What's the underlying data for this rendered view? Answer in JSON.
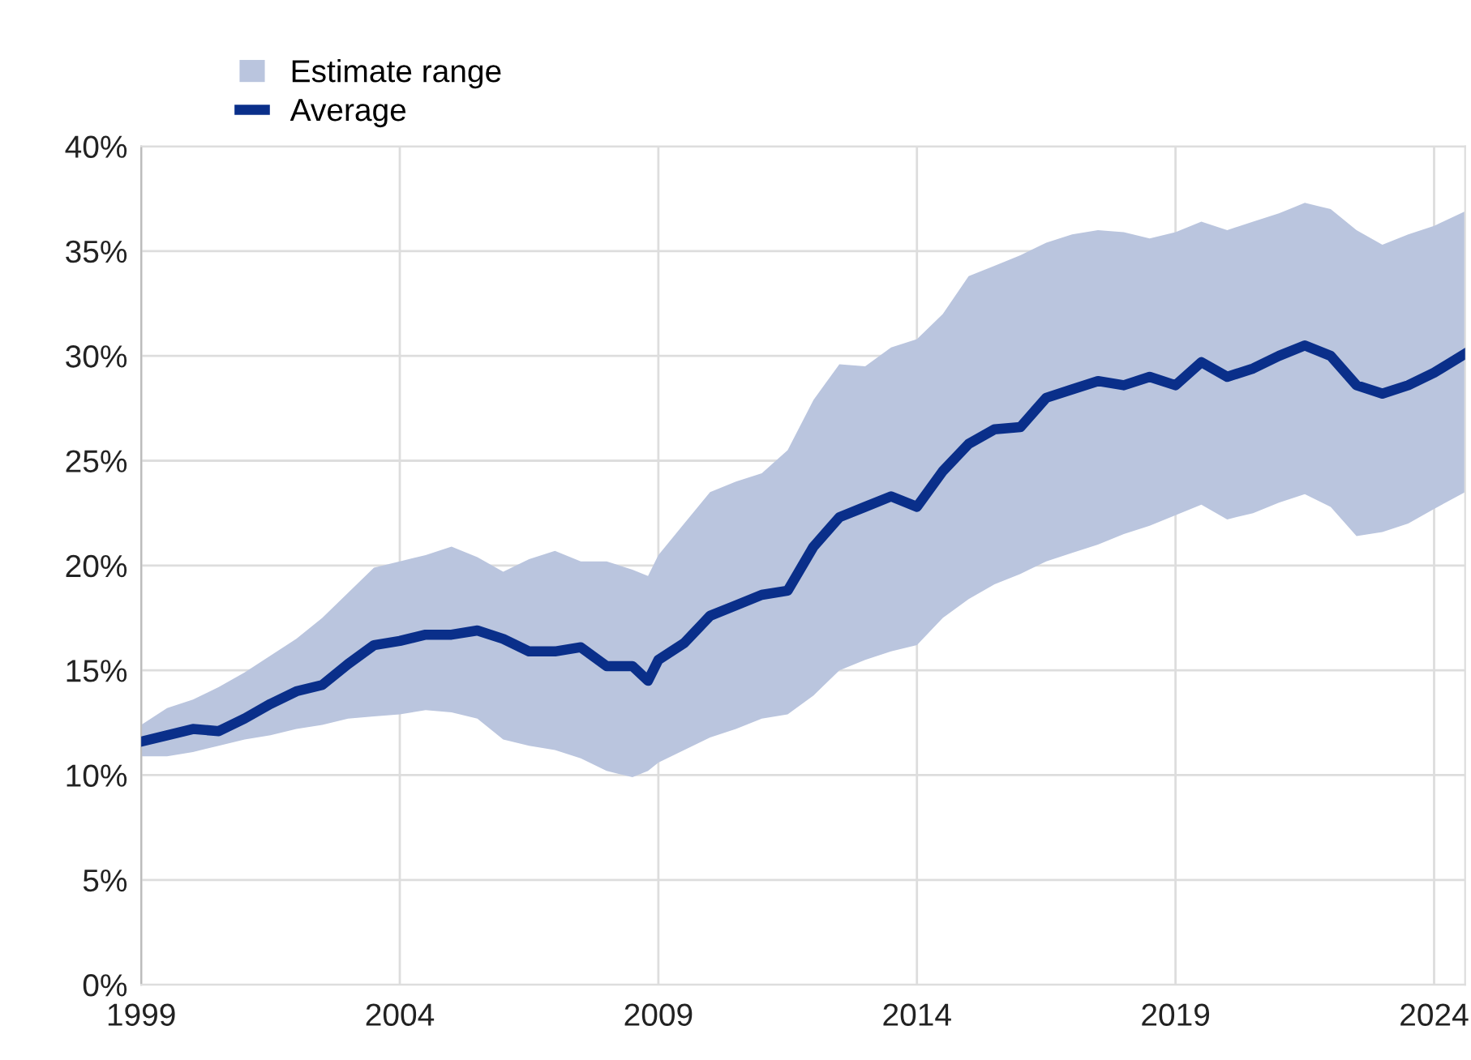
{
  "chart_data": {
    "type": "line",
    "x": [
      1999.0,
      1999.5,
      2000.0,
      2000.5,
      2001.0,
      2001.5,
      2002.0,
      2002.5,
      2003.0,
      2003.5,
      2004.0,
      2004.5,
      2005.0,
      2005.5,
      2006.0,
      2006.5,
      2007.0,
      2007.5,
      2008.0,
      2008.5,
      2008.8,
      2009.0,
      2009.5,
      2010.0,
      2010.5,
      2011.0,
      2011.5,
      2012.0,
      2012.5,
      2013.0,
      2013.5,
      2014.0,
      2014.5,
      2015.0,
      2015.5,
      2016.0,
      2016.5,
      2017.0,
      2017.5,
      2018.0,
      2018.5,
      2019.0,
      2019.5,
      2020.0,
      2020.5,
      2021.0,
      2021.5,
      2022.0,
      2022.5,
      2023.0,
      2023.5,
      2024.0,
      2024.6
    ],
    "series": [
      {
        "name": "Average",
        "color": "#0a2f8a",
        "values": [
          11.6,
          11.9,
          12.2,
          12.1,
          12.7,
          13.4,
          14.0,
          14.3,
          15.3,
          16.2,
          16.4,
          16.7,
          16.7,
          16.9,
          16.5,
          15.9,
          15.9,
          16.1,
          15.2,
          15.2,
          14.5,
          15.5,
          16.3,
          17.6,
          18.1,
          18.6,
          18.8,
          20.9,
          22.3,
          22.8,
          23.3,
          22.8,
          24.5,
          25.8,
          26.5,
          26.6,
          28.0,
          28.4,
          28.8,
          28.6,
          29.0,
          28.6,
          29.7,
          29.0,
          29.4,
          30.0,
          30.5,
          30.0,
          28.6,
          28.2,
          28.6,
          29.2,
          30.1
        ],
        "lower": [
          10.9,
          10.9,
          11.1,
          11.4,
          11.7,
          11.9,
          12.2,
          12.4,
          12.7,
          12.8,
          12.9,
          13.1,
          13.0,
          12.7,
          11.7,
          11.4,
          11.2,
          10.8,
          10.2,
          9.9,
          10.2,
          10.6,
          11.2,
          11.8,
          12.2,
          12.7,
          12.9,
          13.8,
          15.0,
          15.5,
          15.9,
          16.2,
          17.5,
          18.4,
          19.1,
          19.6,
          20.2,
          20.6,
          21.0,
          21.5,
          21.9,
          22.4,
          22.9,
          22.2,
          22.5,
          23.0,
          23.4,
          22.8,
          21.4,
          21.6,
          22.0,
          22.7,
          23.5
        ],
        "upper": [
          12.4,
          13.2,
          13.6,
          14.2,
          14.9,
          15.7,
          16.5,
          17.5,
          18.7,
          19.9,
          20.2,
          20.5,
          20.9,
          20.4,
          19.7,
          20.3,
          20.7,
          20.2,
          20.2,
          19.8,
          19.5,
          20.5,
          22.0,
          23.5,
          24.0,
          24.4,
          25.5,
          27.9,
          29.6,
          29.5,
          30.4,
          30.8,
          32.0,
          33.8,
          34.3,
          34.8,
          35.4,
          35.8,
          36.0,
          35.9,
          35.6,
          35.9,
          36.4,
          36.0,
          36.4,
          36.8,
          37.3,
          37.0,
          36.0,
          35.3,
          35.8,
          36.2,
          36.9
        ]
      }
    ],
    "annotations": [
      "Estimate range"
    ],
    "xlim": [
      1999,
      2024.6
    ],
    "xticks": [
      1999,
      2004,
      2009,
      2014,
      2019,
      2024
    ],
    "ylim": [
      0,
      40
    ],
    "yticks": [
      {
        "value": 0,
        "label": "0%"
      },
      {
        "value": 5,
        "label": "5%"
      },
      {
        "value": 10,
        "label": "10%"
      },
      {
        "value": 15,
        "label": "15%"
      },
      {
        "value": 20,
        "label": "20%"
      },
      {
        "value": 25,
        "label": "25%"
      },
      {
        "value": 30,
        "label": "30%"
      },
      {
        "value": 35,
        "label": "35%"
      },
      {
        "value": 40,
        "label": "40%"
      }
    ],
    "grid": true,
    "legend": "top left",
    "line_style": "solid",
    "marker": "none"
  }
}
